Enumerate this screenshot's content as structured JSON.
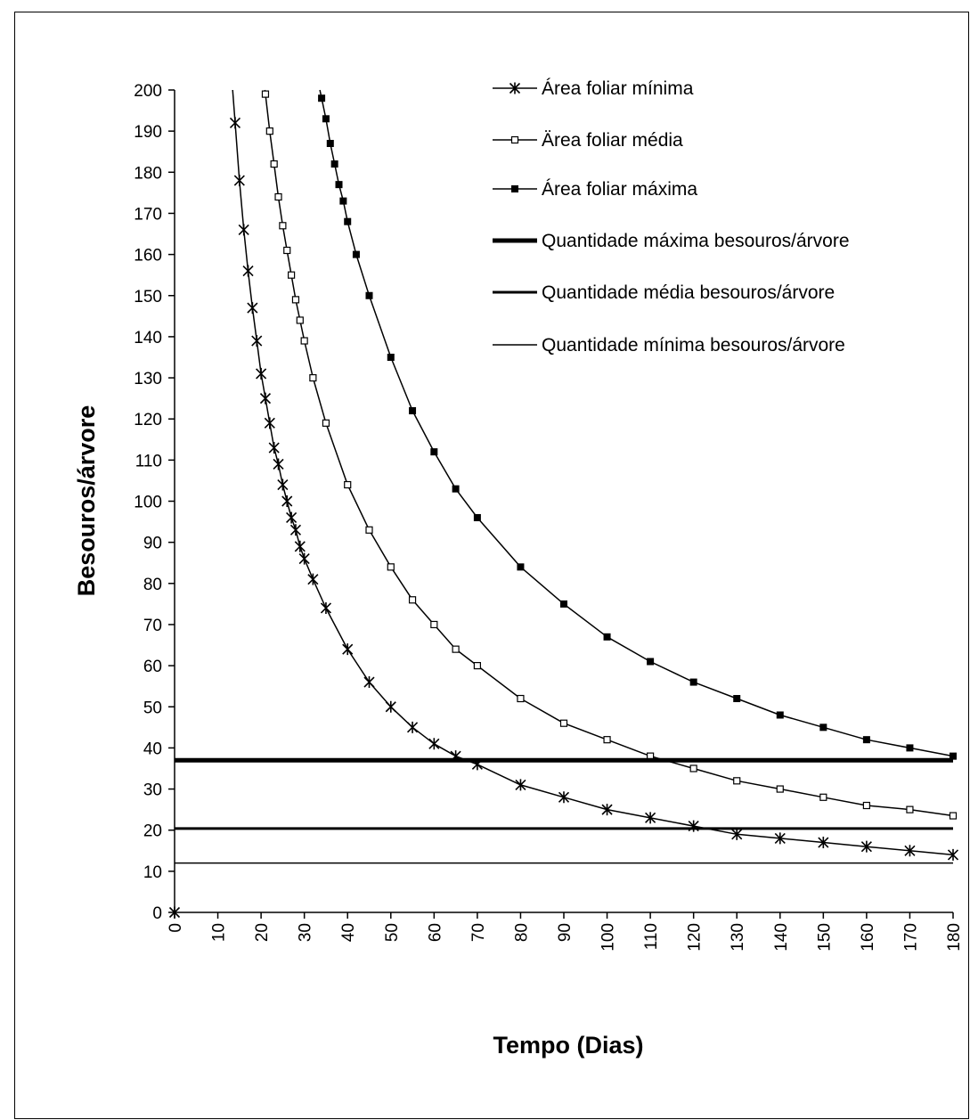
{
  "chart_data": {
    "type": "line",
    "title": "",
    "xlabel": "Tempo (Dias)",
    "ylabel": "Besouros/árvore",
    "xlim": [
      0,
      180
    ],
    "ylim": [
      0,
      200
    ],
    "x_ticks": [
      0,
      10,
      20,
      30,
      40,
      50,
      60,
      70,
      80,
      90,
      100,
      110,
      120,
      130,
      140,
      150,
      160,
      170,
      180
    ],
    "y_ticks": [
      0,
      10,
      20,
      30,
      40,
      50,
      60,
      70,
      80,
      90,
      100,
      110,
      120,
      130,
      140,
      150,
      160,
      170,
      180,
      190,
      200
    ],
    "grid": false,
    "legend_position": "top-right",
    "series": [
      {
        "name": "Área foliar mínima",
        "marker": "star",
        "line_width": 1.5,
        "x": [
          0,
          14,
          15,
          16,
          17,
          18,
          19,
          20,
          21,
          22,
          23,
          24,
          25,
          26,
          27,
          28,
          29,
          30,
          32,
          35,
          40,
          45,
          50,
          55,
          60,
          65,
          70,
          80,
          90,
          100,
          110,
          120,
          130,
          140,
          150,
          160,
          170,
          180
        ],
        "values": [
          0,
          192,
          178,
          166,
          156,
          147,
          139,
          131,
          125,
          119,
          113,
          109,
          104,
          100,
          96,
          93,
          89,
          86,
          81,
          74,
          64,
          56,
          50,
          45,
          41,
          38,
          36,
          31,
          28,
          25,
          23,
          21,
          19,
          18,
          17,
          16,
          15,
          14
        ]
      },
      {
        "name": "Ärea foliar média",
        "marker": "open-square",
        "line_width": 1.5,
        "x": [
          21,
          22,
          23,
          24,
          25,
          26,
          27,
          28,
          29,
          30,
          32,
          35,
          40,
          45,
          50,
          55,
          60,
          65,
          70,
          80,
          90,
          100,
          110,
          120,
          130,
          140,
          150,
          160,
          170,
          180
        ],
        "values": [
          199,
          190,
          182,
          174,
          167,
          161,
          155,
          149,
          144,
          139,
          130,
          119,
          104,
          93,
          84,
          76,
          70,
          64,
          60,
          52,
          46,
          42,
          38,
          35,
          32,
          30,
          28,
          26,
          25,
          23.5
        ]
      },
      {
        "name": "Área foliar máxima",
        "marker": "filled-square",
        "line_width": 1.5,
        "x": [
          34,
          35,
          36,
          37,
          38,
          39,
          40,
          42,
          45,
          50,
          55,
          60,
          65,
          70,
          80,
          90,
          100,
          110,
          120,
          130,
          140,
          150,
          160,
          170,
          180
        ],
        "values": [
          198,
          193,
          187,
          182,
          177,
          173,
          168,
          160,
          150,
          135,
          122,
          112,
          103,
          96,
          84,
          75,
          67,
          61,
          56,
          52,
          48,
          45,
          42,
          40,
          38
        ]
      },
      {
        "name": "Quantidade máxima besouros/árvore",
        "marker": "none",
        "line_width": 5,
        "x": [
          0,
          180
        ],
        "values": [
          37,
          37
        ]
      },
      {
        "name": "Quantidade média besouros/árvore",
        "marker": "none",
        "line_width": 3,
        "x": [
          0,
          180
        ],
        "values": [
          20.4,
          20.4
        ]
      },
      {
        "name": "Quantidade mínima besouros/árvore",
        "marker": "none",
        "line_width": 1.5,
        "x": [
          0,
          180
        ],
        "values": [
          12,
          12
        ]
      }
    ]
  }
}
